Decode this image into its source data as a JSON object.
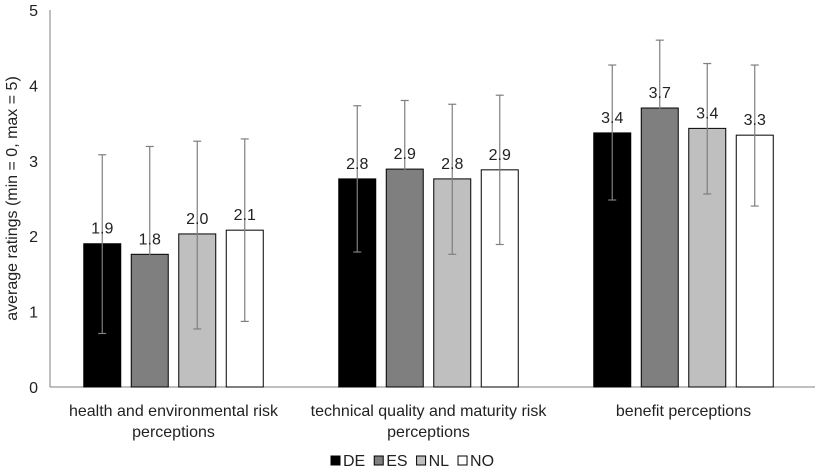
{
  "chart_data": {
    "type": "bar",
    "title": "",
    "xlabel": "",
    "ylabel": "average ratings (min = 0, max = 5)",
    "ylim": [
      0,
      5
    ],
    "yticks": [
      "0",
      "1",
      "2",
      "3",
      "4",
      "5"
    ],
    "grid": false,
    "legend_position": "bottom-right",
    "categories": [
      [
        "health and environmental risk",
        "perceptions"
      ],
      [
        "technical quality and maturity risk",
        "perceptions"
      ],
      [
        "benefit perceptions"
      ]
    ],
    "series": [
      {
        "name": "DE",
        "color": "#000000",
        "values": [
          1.9,
          2.76,
          3.37
        ],
        "labels": [
          "1.9",
          "2.8",
          "3.4"
        ],
        "err_low": [
          0.71,
          1.79,
          2.48
        ],
        "err_high": [
          3.08,
          3.73,
          4.27
        ]
      },
      {
        "name": "ES",
        "color": "#7f7f7f",
        "values": [
          1.76,
          2.89,
          3.7
        ],
        "labels": [
          "1.8",
          "2.9",
          "3.7"
        ],
        "err_low": [
          0.33,
          1.97,
          2.79
        ],
        "err_high": [
          3.19,
          3.8,
          4.6
        ]
      },
      {
        "name": "NL",
        "color": "#bfbfbf",
        "values": [
          2.03,
          2.76,
          3.43
        ],
        "labels": [
          "2.0",
          "2.8",
          "3.4"
        ],
        "err_low": [
          0.77,
          1.76,
          2.56
        ],
        "err_high": [
          3.26,
          3.75,
          4.29
        ]
      },
      {
        "name": "NO",
        "color": "#ffffff",
        "values": [
          2.08,
          2.88,
          3.34
        ],
        "labels": [
          "2.1",
          "2.9",
          "3.3"
        ],
        "err_low": [
          0.87,
          1.89,
          2.4
        ],
        "err_high": [
          3.29,
          3.87,
          4.27
        ]
      }
    ]
  }
}
